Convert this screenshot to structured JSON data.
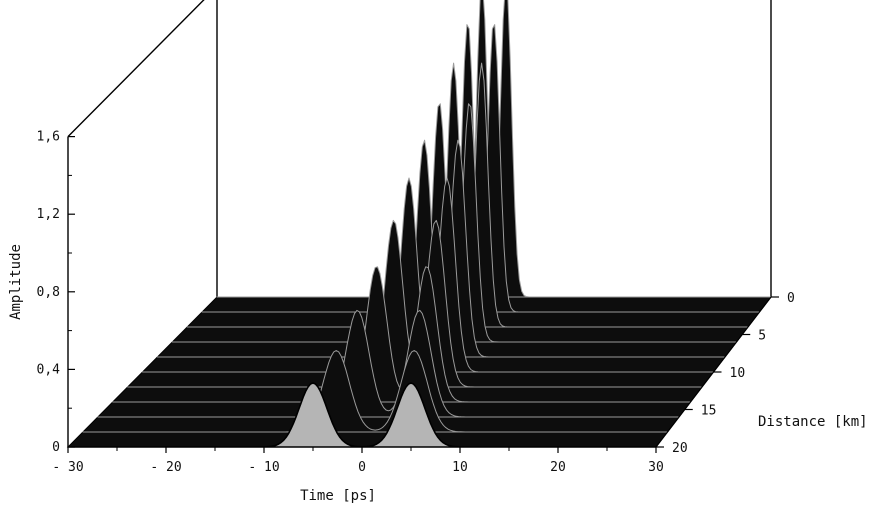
{
  "chart_data": {
    "type": "waterfall-3d",
    "title": "",
    "xlabel": "Time [ps]",
    "ylabel": "Amplitude",
    "zlabel": "Distance [km]",
    "xlim": [
      -30,
      30
    ],
    "ylim": [
      0,
      1.6
    ],
    "zlim": [
      0,
      20
    ],
    "x_ticks": [
      -30,
      -20,
      -10,
      0,
      10,
      20,
      30
    ],
    "y_ticks": [
      0,
      0.4,
      0.8,
      1.2,
      1.6
    ],
    "y_tick_labels": [
      "0",
      "0,4",
      "0,8",
      "1,2",
      "1,6"
    ],
    "z_ticks": [
      0,
      5,
      10,
      15,
      20
    ],
    "series": [
      {
        "distance_km": 20,
        "pulses": [
          {
            "center": -5.0,
            "amp": 0.33,
            "width": 2.0
          },
          {
            "center": 5.0,
            "amp": 0.33,
            "width": 2.0
          }
        ]
      },
      {
        "distance_km": 18,
        "pulses": [
          {
            "center": -4.0,
            "amp": 0.42,
            "width": 1.9
          },
          {
            "center": 4.0,
            "amp": 0.42,
            "width": 1.9
          }
        ]
      },
      {
        "distance_km": 16,
        "pulses": [
          {
            "center": -3.2,
            "amp": 0.55,
            "width": 1.7
          },
          {
            "center": 3.2,
            "amp": 0.55,
            "width": 1.7
          }
        ]
      },
      {
        "distance_km": 14,
        "pulses": [
          {
            "center": -2.6,
            "amp": 0.7,
            "width": 1.5
          },
          {
            "center": 2.6,
            "amp": 0.7,
            "width": 1.5
          }
        ]
      },
      {
        "distance_km": 12,
        "pulses": [
          {
            "center": -2.2,
            "amp": 0.86,
            "width": 1.35
          },
          {
            "center": 2.2,
            "amp": 0.86,
            "width": 1.35
          }
        ]
      },
      {
        "distance_km": 10,
        "pulses": [
          {
            "center": -2.0,
            "amp": 1.0,
            "width": 1.2
          },
          {
            "center": 2.0,
            "amp": 1.0,
            "width": 1.2
          }
        ]
      },
      {
        "distance_km": 8,
        "pulses": [
          {
            "center": -1.8,
            "amp": 1.12,
            "width": 1.1
          },
          {
            "center": 1.8,
            "amp": 1.12,
            "width": 1.1
          }
        ]
      },
      {
        "distance_km": 6,
        "pulses": [
          {
            "center": -1.6,
            "amp": 1.24,
            "width": 1.0
          },
          {
            "center": 1.6,
            "amp": 1.24,
            "width": 1.0
          }
        ]
      },
      {
        "distance_km": 4,
        "pulses": [
          {
            "center": -1.5,
            "amp": 1.36,
            "width": 0.95
          },
          {
            "center": 1.5,
            "amp": 1.36,
            "width": 0.95
          }
        ]
      },
      {
        "distance_km": 2,
        "pulses": [
          {
            "center": -1.4,
            "amp": 1.5,
            "width": 0.9
          },
          {
            "center": 1.4,
            "amp": 1.5,
            "width": 0.9
          }
        ]
      },
      {
        "distance_km": 0,
        "pulses": [
          {
            "center": -1.3,
            "amp": 1.62,
            "width": 0.85
          },
          {
            "center": 1.3,
            "amp": 1.62,
            "width": 0.85
          }
        ]
      }
    ],
    "colors": {
      "surface": "#0d0d0d",
      "front_fill": "#b5b5b5",
      "line": "#000000"
    }
  }
}
